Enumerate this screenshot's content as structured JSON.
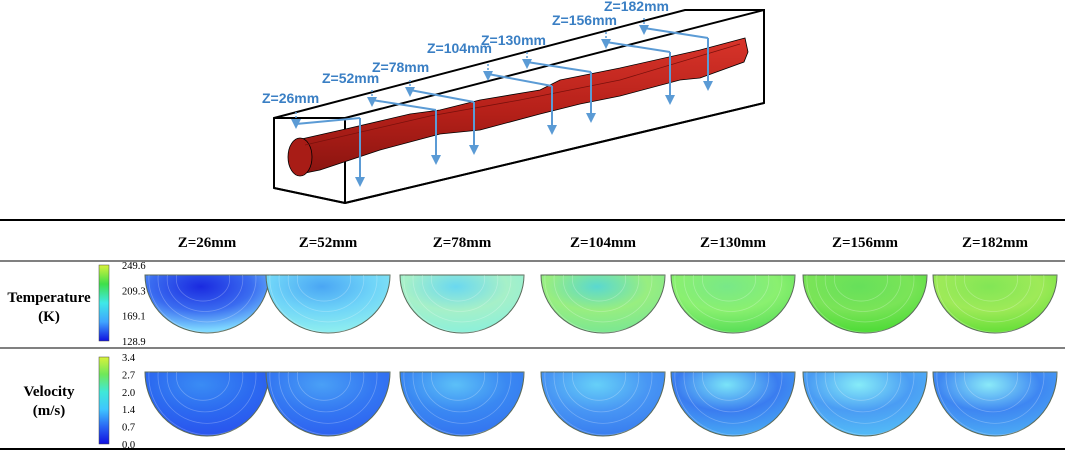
{
  "schematic": {
    "slice_labels": [
      "Z=26mm",
      "Z=52mm",
      "Z=78mm",
      "Z=104mm",
      "Z=130mm",
      "Z=156mm",
      "Z=182mm"
    ],
    "box_color": "#000000",
    "pipe_color": "#c0261f",
    "arrow_color": "#5b9bd5",
    "label_color": "#3a7fc4"
  },
  "table": {
    "columns": [
      "Z=26mm",
      "Z=52mm",
      "Z=78mm",
      "Z=104mm",
      "Z=130mm",
      "Z=156mm",
      "Z=182mm"
    ],
    "rows": [
      {
        "title_line1": "Temperature",
        "title_line2": "(K)",
        "colorbar_ticks": [
          "249.6",
          "209.3",
          "169.1",
          "128.9"
        ],
        "colorbar_colors": [
          "#d8f23a",
          "#3fe04a",
          "#3fe8e8",
          "#3fa4ff",
          "#1010e0"
        ],
        "cell_colors": [
          {
            "outer": "#7fd8ff",
            "inner": "#1a2ae0",
            "accent": "#3a6cf0"
          },
          {
            "outer": "#8cecf0",
            "inner": "#4aa6f4",
            "accent": "#6fd4f8"
          },
          {
            "outer": "#8ff0d8",
            "inner": "#6ad8f0",
            "accent": "#a6f0c8"
          },
          {
            "outer": "#7ee890",
            "inner": "#5ad8d0",
            "accent": "#98ee80"
          },
          {
            "outer": "#5ee05a",
            "inner": "#78e888",
            "accent": "#8af070"
          },
          {
            "outer": "#52dc3a",
            "inner": "#66e05a",
            "accent": "#7ae458"
          },
          {
            "outer": "#6ce03c",
            "inner": "#82e656",
            "accent": "#9eea58"
          }
        ]
      },
      {
        "title_line1": "Velocity",
        "title_line2": "(m/s)",
        "colorbar_ticks": [
          "3.4",
          "2.7",
          "2.0",
          "1.4",
          "0.7",
          "0.0"
        ],
        "colorbar_colors": [
          "#d8f23a",
          "#6fe85a",
          "#3fe8d8",
          "#3fc6ff",
          "#2a66f4",
          "#1010e0"
        ],
        "cell_colors": [
          {
            "outer": "#2a56ee",
            "inner": "#3a8cf4",
            "accent": "#2c6af0"
          },
          {
            "outer": "#2e64f0",
            "inner": "#4aa0f6",
            "accent": "#3478f2"
          },
          {
            "outer": "#3476f0",
            "inner": "#5cc0f8",
            "accent": "#3a88f2"
          },
          {
            "outer": "#3a80f0",
            "inner": "#66d0f8",
            "accent": "#4896f4"
          },
          {
            "outer": "#46a4f4",
            "inner": "#7ae4f8",
            "accent": "#3a7cf0"
          },
          {
            "outer": "#52b8f6",
            "inner": "#86ecf8",
            "accent": "#4a9cf4"
          },
          {
            "outer": "#4aa6f4",
            "inner": "#8aeaf8",
            "accent": "#3e86f2"
          }
        ]
      }
    ]
  }
}
